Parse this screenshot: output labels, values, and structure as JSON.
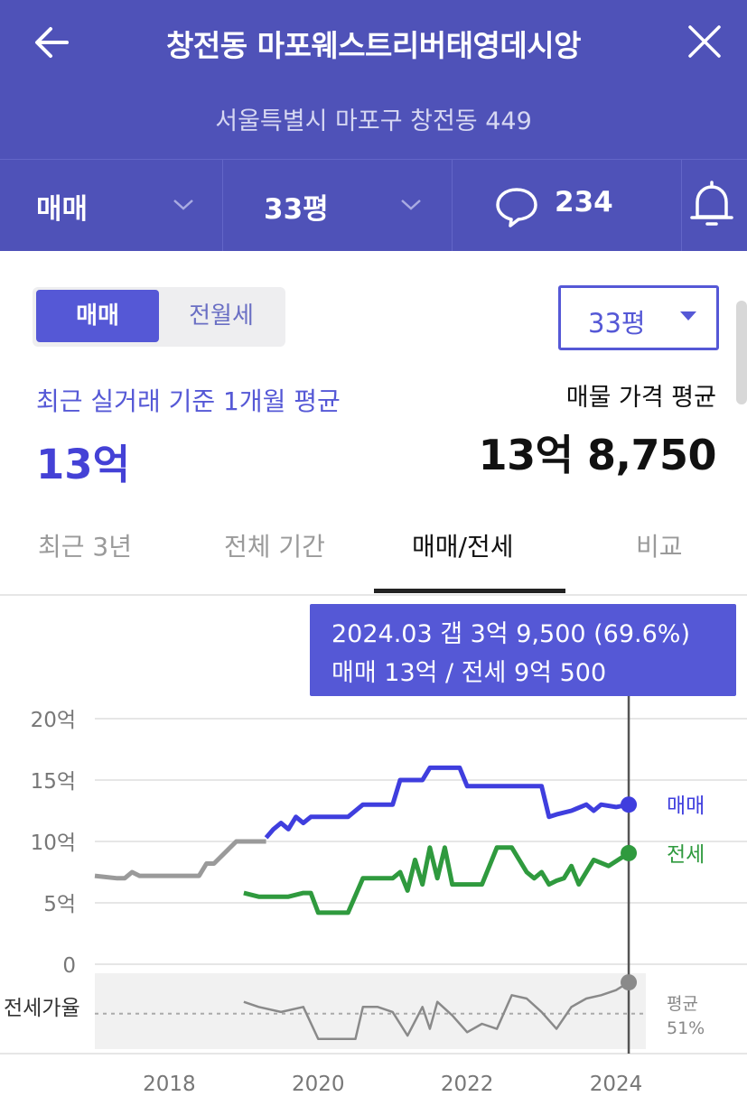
{
  "header": {
    "title": "창전동 마포웨스트리버태영데시앙",
    "address": "서울특별시 마포구 창전동 449",
    "deal_type": "매매",
    "size": "33평",
    "comment_count": "234"
  },
  "price_panel": {
    "toggle": {
      "sale_label": "매매",
      "rent_label": "전월세",
      "selected": "매매"
    },
    "size_dropdown": "33평",
    "recent_label": "최근 실거래 기준 1개월 평균",
    "recent_value": "13억",
    "listing_label": "매물 가격 평균",
    "listing_value": "13억 8,750"
  },
  "tabs": [
    {
      "label": "최근 3년",
      "active": false
    },
    {
      "label": "전체 기간",
      "active": false
    },
    {
      "label": "매매/전세",
      "active": true
    },
    {
      "label": "비교",
      "active": false
    }
  ],
  "tooltip": {
    "line1": "2024.03  갭 3억 9,500 (69.6%)",
    "line2": "매매 13억 / 전세 9억 500"
  },
  "chart_data": {
    "type": "line",
    "x_ticks": [
      "2018",
      "2020",
      "2022",
      "2024"
    ],
    "xlim": [
      2017.0,
      2024.4
    ],
    "y_ticks": [
      "20억",
      "15억",
      "10억",
      "5억",
      "0"
    ],
    "ylim": [
      0,
      20
    ],
    "ratio_label": "전세가율",
    "avg_label_line1": "평균",
    "avg_label_line2": "51%",
    "ratio_avg": 51,
    "grid": true,
    "colors": {
      "sale_early": "#9a9a9a",
      "sale": "#3f3ede",
      "rent": "#2f9a3e",
      "ratio": "#8a8a8a",
      "marker_line": "#555555"
    },
    "series": [
      {
        "name": "매매",
        "x": [
          2017.0,
          2017.3,
          2017.4,
          2017.5,
          2017.6,
          2018.0,
          2018.4,
          2018.5,
          2018.6,
          2018.9,
          2019.0,
          2019.3
        ],
        "y": [
          7.2,
          7.0,
          7.0,
          7.5,
          7.2,
          7.2,
          7.2,
          8.2,
          8.2,
          10.0,
          10.0,
          10.0
        ]
      },
      {
        "name": "매매",
        "x": [
          2019.3,
          2019.4,
          2019.5,
          2019.6,
          2019.7,
          2019.8,
          2019.9,
          2020.0,
          2020.2,
          2020.4,
          2020.6,
          2020.7,
          2020.8,
          2021.0,
          2021.1,
          2021.2,
          2021.4,
          2021.5,
          2021.6,
          2021.9,
          2022.0,
          2022.2,
          2022.6,
          2023.0,
          2023.1,
          2023.2,
          2023.4,
          2023.6,
          2023.7,
          2023.8,
          2024.0,
          2024.17
        ],
        "y": [
          10.3,
          11.0,
          11.5,
          11.0,
          12.0,
          11.5,
          12.0,
          12.0,
          12.0,
          12.0,
          13.0,
          13.0,
          13.0,
          13.0,
          15.0,
          15.0,
          15.0,
          16.0,
          16.0,
          16.0,
          14.5,
          14.5,
          14.5,
          14.5,
          12.0,
          12.2,
          12.5,
          13.0,
          12.5,
          13.0,
          12.8,
          13.0
        ]
      },
      {
        "name": "전세",
        "x": [
          2019.0,
          2019.2,
          2019.4,
          2019.6,
          2019.8,
          2019.9,
          2020.0,
          2020.2,
          2020.4,
          2020.6,
          2020.8,
          2021.0,
          2021.1,
          2021.2,
          2021.3,
          2021.4,
          2021.5,
          2021.6,
          2021.7,
          2021.8,
          2021.9,
          2022.0,
          2022.2,
          2022.4,
          2022.6,
          2022.8,
          2022.9,
          2023.0,
          2023.1,
          2023.2,
          2023.3,
          2023.4,
          2023.5,
          2023.7,
          2023.9,
          2024.17
        ],
        "y": [
          5.8,
          5.5,
          5.5,
          5.5,
          5.8,
          5.8,
          4.2,
          4.2,
          4.2,
          7.0,
          7.0,
          7.0,
          7.5,
          6.0,
          8.5,
          6.5,
          9.5,
          7.0,
          9.5,
          6.5,
          6.5,
          6.5,
          6.5,
          9.5,
          9.5,
          7.5,
          7.0,
          7.5,
          6.5,
          6.8,
          7.0,
          8.0,
          6.5,
          8.5,
          8.0,
          9.05
        ]
      },
      {
        "name": "전세가율",
        "x": [
          2019.0,
          2019.2,
          2019.5,
          2019.8,
          2020.0,
          2020.3,
          2020.5,
          2020.6,
          2020.8,
          2021.0,
          2021.2,
          2021.4,
          2021.5,
          2021.6,
          2021.8,
          2022.0,
          2022.2,
          2022.4,
          2022.6,
          2022.8,
          2023.0,
          2023.2,
          2023.4,
          2023.6,
          2023.8,
          2024.0,
          2024.17
        ],
        "y": [
          58,
          55,
          52,
          55,
          36,
          36,
          36,
          55,
          55,
          52,
          38,
          55,
          42,
          58,
          50,
          40,
          45,
          42,
          62,
          60,
          52,
          42,
          55,
          60,
          62,
          65,
          69.6
        ]
      }
    ]
  }
}
